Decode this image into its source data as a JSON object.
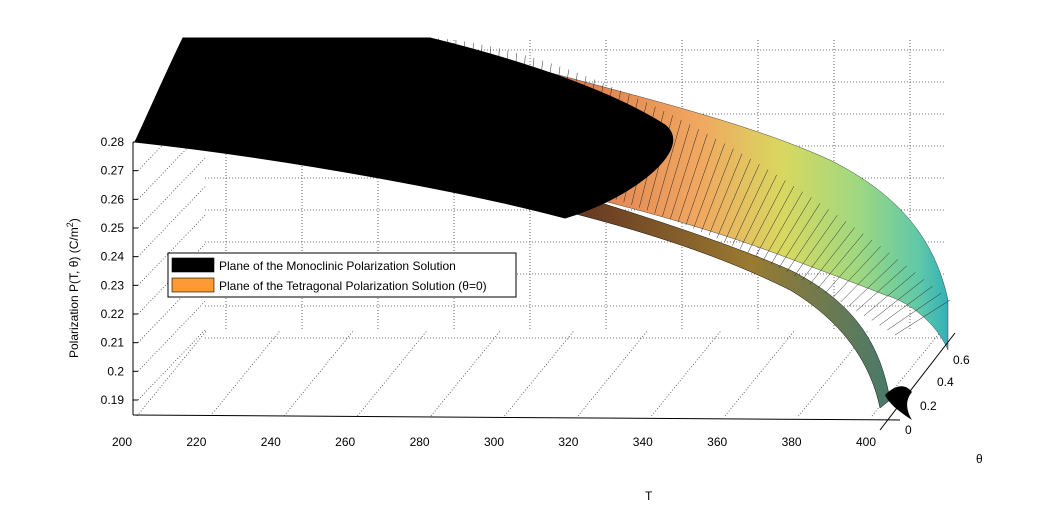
{
  "chart_data": {
    "type": "surface",
    "title": "",
    "xlabel": "T",
    "ylabel": "θ",
    "zlabel_prefix": "Polarization   P(T, θ) (C/m",
    "zlabel_sup": "2",
    "zlabel_suffix": ")",
    "xlim": [
      200,
      410
    ],
    "ylim": [
      0,
      0.7
    ],
    "zlim": [
      0.185,
      0.285
    ],
    "x_ticks": [
      "200",
      "220",
      "240",
      "260",
      "280",
      "300",
      "320",
      "340",
      "360",
      "380",
      "400"
    ],
    "y_ticks": [
      "0",
      "0.2",
      "0.4",
      "0.6"
    ],
    "z_ticks": [
      "0.19",
      "0.2",
      "0.21",
      "0.22",
      "0.23",
      "0.24",
      "0.25",
      "0.26",
      "0.27",
      "0.28"
    ],
    "grid": true,
    "legend_position": "center-left",
    "series": [
      {
        "name": "Plane of the Monoclinic Polarization Solution",
        "color": "#000000",
        "edge_T": [
          200,
          240,
          280,
          320,
          340,
          360,
          380,
          400,
          410
        ],
        "edge_P": [
          0.28,
          0.277,
          0.271,
          0.263,
          0.258,
          0.251,
          0.24,
          0.22,
          0.19
        ]
      },
      {
        "name": "Plane of the Tetragonal Polarization Solution (θ=0)",
        "color": "#ff9933",
        "colormap": "jet-shaded (orange → yellow → green → cyan)"
      }
    ]
  }
}
